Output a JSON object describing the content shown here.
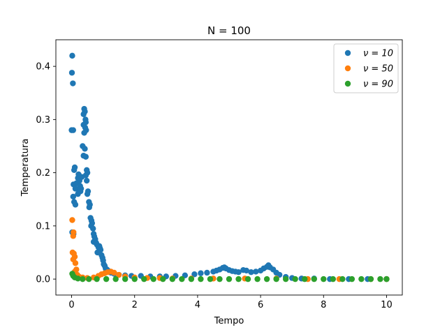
{
  "chart_data": {
    "type": "scatter",
    "title": "N = 100",
    "xlabel": "Tempo",
    "ylabel": "Temperatura",
    "xlim": [
      -0.5,
      10.5
    ],
    "ylim": [
      -0.03,
      0.45
    ],
    "xticks": [
      0,
      2,
      4,
      6,
      8,
      10
    ],
    "xtick_labels": [
      "0",
      "2",
      "4",
      "6",
      "8",
      "10"
    ],
    "yticks": [
      0.0,
      0.1,
      0.2,
      0.3,
      0.4
    ],
    "ytick_labels": [
      "0.0",
      "0.1",
      "0.2",
      "0.3",
      "0.4"
    ],
    "grid": false,
    "legend_position": "top-right",
    "series": [
      {
        "name": "ν = 10",
        "legend_label": "ν = 10",
        "color": "#1f77b4",
        "points": [
          [
            0.02,
            0.42
          ],
          [
            0.01,
            0.388
          ],
          [
            0.04,
            0.368
          ],
          [
            0.0,
            0.28
          ],
          [
            0.05,
            0.28
          ],
          [
            0.08,
            0.205
          ],
          [
            0.1,
            0.21
          ],
          [
            0.06,
            0.178
          ],
          [
            0.12,
            0.17
          ],
          [
            0.15,
            0.18
          ],
          [
            0.05,
            0.155
          ],
          [
            0.08,
            0.145
          ],
          [
            0.12,
            0.14
          ],
          [
            0.02,
            0.088
          ],
          [
            0.06,
            0.085
          ],
          [
            0.2,
            0.19
          ],
          [
            0.22,
            0.197
          ],
          [
            0.25,
            0.185
          ],
          [
            0.27,
            0.175
          ],
          [
            0.3,
            0.17
          ],
          [
            0.28,
            0.165
          ],
          [
            0.32,
            0.192
          ],
          [
            0.2,
            0.16
          ],
          [
            0.24,
            0.165
          ],
          [
            0.38,
            0.31
          ],
          [
            0.4,
            0.32
          ],
          [
            0.42,
            0.315
          ],
          [
            0.44,
            0.3
          ],
          [
            0.45,
            0.295
          ],
          [
            0.38,
            0.29
          ],
          [
            0.43,
            0.285
          ],
          [
            0.4,
            0.275
          ],
          [
            0.46,
            0.28
          ],
          [
            0.35,
            0.25
          ],
          [
            0.42,
            0.245
          ],
          [
            0.45,
            0.23
          ],
          [
            0.38,
            0.232
          ],
          [
            0.48,
            0.205
          ],
          [
            0.5,
            0.2
          ],
          [
            0.45,
            0.195
          ],
          [
            0.48,
            0.185
          ],
          [
            0.5,
            0.16
          ],
          [
            0.52,
            0.165
          ],
          [
            0.55,
            0.145
          ],
          [
            0.58,
            0.14
          ],
          [
            0.56,
            0.135
          ],
          [
            0.6,
            0.115
          ],
          [
            0.63,
            0.11
          ],
          [
            0.65,
            0.105
          ],
          [
            0.62,
            0.1
          ],
          [
            0.68,
            0.095
          ],
          [
            0.7,
            0.085
          ],
          [
            0.72,
            0.08
          ],
          [
            0.75,
            0.075
          ],
          [
            0.7,
            0.07
          ],
          [
            0.78,
            0.068
          ],
          [
            0.8,
            0.065
          ],
          [
            0.85,
            0.06
          ],
          [
            0.88,
            0.062
          ],
          [
            0.9,
            0.058
          ],
          [
            0.92,
            0.055
          ],
          [
            0.82,
            0.05
          ],
          [
            0.95,
            0.045
          ],
          [
            0.98,
            0.04
          ],
          [
            1.0,
            0.035
          ],
          [
            1.02,
            0.028
          ],
          [
            1.05,
            0.025
          ],
          [
            1.08,
            0.02
          ],
          [
            1.12,
            0.018
          ],
          [
            1.18,
            0.015
          ],
          [
            1.25,
            0.012
          ],
          [
            1.35,
            0.01
          ],
          [
            1.5,
            0.008
          ],
          [
            1.7,
            0.007
          ],
          [
            1.9,
            0.006
          ],
          [
            2.2,
            0.006
          ],
          [
            2.5,
            0.005
          ],
          [
            2.8,
            0.005
          ],
          [
            3.0,
            0.005
          ],
          [
            3.3,
            0.006
          ],
          [
            3.6,
            0.007
          ],
          [
            3.9,
            0.009
          ],
          [
            4.1,
            0.011
          ],
          [
            4.3,
            0.012
          ],
          [
            4.5,
            0.014
          ],
          [
            4.6,
            0.016
          ],
          [
            4.7,
            0.018
          ],
          [
            4.8,
            0.021
          ],
          [
            4.85,
            0.022
          ],
          [
            4.9,
            0.02
          ],
          [
            5.0,
            0.017
          ],
          [
            5.1,
            0.015
          ],
          [
            5.2,
            0.014
          ],
          [
            5.3,
            0.013
          ],
          [
            5.45,
            0.017
          ],
          [
            5.55,
            0.016
          ],
          [
            5.7,
            0.013
          ],
          [
            5.85,
            0.014
          ],
          [
            6.0,
            0.016
          ],
          [
            6.1,
            0.02
          ],
          [
            6.2,
            0.023
          ],
          [
            6.25,
            0.026
          ],
          [
            6.3,
            0.022
          ],
          [
            6.4,
            0.018
          ],
          [
            6.5,
            0.012
          ],
          [
            6.6,
            0.008
          ],
          [
            6.8,
            0.004
          ],
          [
            7.0,
            0.002
          ],
          [
            7.3,
            0.001
          ],
          [
            7.7,
            0.001
          ],
          [
            8.2,
            0.0
          ],
          [
            8.8,
            0.0
          ],
          [
            9.4,
            0.0
          ],
          [
            10.0,
            0.0
          ]
        ]
      },
      {
        "name": "ν = 50",
        "legend_label": "ν = 50",
        "color": "#ff7f0e",
        "points": [
          [
            0.02,
            0.111
          ],
          [
            0.06,
            0.088
          ],
          [
            0.05,
            0.081
          ],
          [
            0.03,
            0.05
          ],
          [
            0.07,
            0.048
          ],
          [
            0.1,
            0.042
          ],
          [
            0.05,
            0.037
          ],
          [
            0.12,
            0.03
          ],
          [
            0.15,
            0.018
          ],
          [
            0.1,
            0.014
          ],
          [
            0.18,
            0.008
          ],
          [
            0.25,
            0.004
          ],
          [
            0.35,
            0.003
          ],
          [
            0.5,
            0.002
          ],
          [
            0.7,
            0.003
          ],
          [
            0.85,
            0.006
          ],
          [
            0.95,
            0.009
          ],
          [
            1.05,
            0.011
          ],
          [
            1.15,
            0.013
          ],
          [
            1.25,
            0.014
          ],
          [
            1.35,
            0.012
          ],
          [
            1.5,
            0.008
          ],
          [
            1.7,
            0.005
          ],
          [
            2.0,
            0.003
          ],
          [
            2.4,
            0.002
          ],
          [
            2.8,
            0.002
          ],
          [
            3.2,
            0.001
          ],
          [
            3.8,
            0.001
          ],
          [
            4.5,
            0.001
          ],
          [
            5.5,
            0.001
          ],
          [
            6.5,
            0.001
          ],
          [
            7.5,
            0.0
          ],
          [
            8.5,
            0.0
          ],
          [
            9.5,
            0.0
          ],
          [
            10.0,
            0.0
          ]
        ]
      },
      {
        "name": "ν = 90",
        "legend_label": "ν = 90",
        "color": "#2ca02c",
        "points": [
          [
            0.02,
            0.01
          ],
          [
            0.05,
            0.006
          ],
          [
            0.1,
            0.003
          ],
          [
            0.2,
            0.001
          ],
          [
            0.35,
            0.0
          ],
          [
            0.55,
            0.0
          ],
          [
            0.8,
            0.0
          ],
          [
            1.1,
            0.0
          ],
          [
            1.4,
            0.0
          ],
          [
            1.7,
            0.0
          ],
          [
            2.0,
            0.0
          ],
          [
            2.3,
            0.0
          ],
          [
            2.6,
            0.0
          ],
          [
            2.9,
            0.0
          ],
          [
            3.2,
            0.0
          ],
          [
            3.5,
            0.0
          ],
          [
            3.8,
            0.0
          ],
          [
            4.1,
            0.0
          ],
          [
            4.4,
            0.0
          ],
          [
            4.7,
            0.0
          ],
          [
            5.0,
            0.0
          ],
          [
            5.3,
            0.0
          ],
          [
            5.6,
            0.0
          ],
          [
            5.9,
            0.0
          ],
          [
            6.2,
            0.0
          ],
          [
            6.5,
            0.0
          ],
          [
            6.8,
            0.0
          ],
          [
            7.1,
            0.0
          ],
          [
            7.4,
            0.0
          ],
          [
            7.7,
            0.0
          ],
          [
            8.0,
            0.0
          ],
          [
            8.3,
            0.0
          ],
          [
            8.6,
            0.0
          ],
          [
            8.9,
            0.0
          ],
          [
            9.2,
            0.0
          ],
          [
            9.5,
            0.0
          ],
          [
            9.8,
            0.0
          ],
          [
            10.0,
            0.0
          ]
        ]
      }
    ]
  }
}
